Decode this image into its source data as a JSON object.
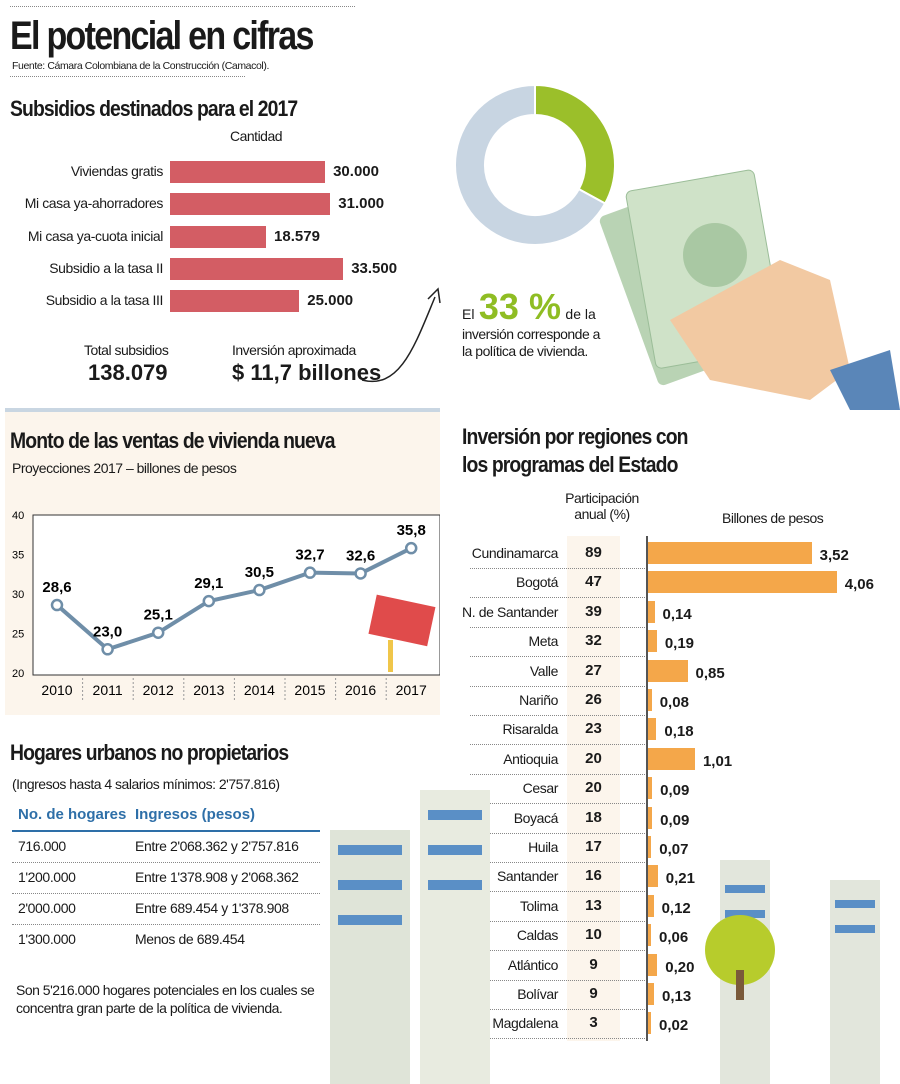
{
  "header": {
    "title": "El potencial  en cifras",
    "source": "Fuente: Cámara Colombiana de la Construcción (Camacol)."
  },
  "subsidios": {
    "title": "Subsidios destinados para el 2017",
    "column_label": "Cantidad",
    "total_label": "Total subsidios",
    "total_value": "138.079",
    "inversion_label": "Inversión aproximada",
    "inversion_value": "$ 11,7 billones"
  },
  "donut": {
    "prefix": "El",
    "percent_text": "33 %",
    "suffix": "de la",
    "line2": "inversión corresponde a",
    "line3": "la política de vivienda.",
    "colors": {
      "highlight": "#9bbf2a",
      "rest": "#c8d5e2"
    }
  },
  "ventas": {
    "title": "Monto de las ventas de vivienda nueva",
    "subtitle": "Proyecciones 2017 – billones de pesos"
  },
  "regiones": {
    "title_line1": "Inversión por regiones con",
    "title_line2": "los programas del Estado",
    "col1_line1": "Participación",
    "col1_line2": "anual (%)",
    "col2": "Billones de pesos"
  },
  "hogares": {
    "title": "Hogares urbanos no propietarios",
    "subtitle": "(Ingresos hasta 4 salarios mínimos: 2'757.816)",
    "headers": [
      "No. de hogares",
      "Ingresos (pesos)"
    ],
    "rows": [
      [
        "716.000",
        "Entre 2'068.362 y 2'757.816"
      ],
      [
        "1'200.000",
        "Entre 1'378.908 y 2'068.362"
      ],
      [
        "2'000.000",
        "Entre 689.454 y 1'378.908"
      ],
      [
        "1'300.000",
        "Menos de 689.454"
      ]
    ],
    "note_line1": "Son 5'216.000 hogares potenciales en los cuales se",
    "note_line2": "concentra gran parte de la política de vivienda."
  },
  "chart_data": [
    {
      "type": "bar",
      "orientation": "horizontal",
      "title": "Subsidios destinados para el 2017",
      "categories": [
        "Viviendas gratis",
        "Mi casa ya-ahorradores",
        "Mi casa ya-cuota inicial",
        "Subsidio a la tasa II",
        "Subsidio a la tasa III"
      ],
      "values": [
        30000,
        31000,
        18579,
        33500,
        25000
      ],
      "labels": [
        "30.000",
        "31.000",
        "18.579",
        "33.500",
        "25.000"
      ],
      "color": "#d35d64"
    },
    {
      "type": "pie",
      "donut": true,
      "values": [
        33,
        67
      ]
    },
    {
      "type": "line",
      "title": "Monto de las ventas de vivienda nueva",
      "x": [
        "2010",
        "2011",
        "2012",
        "2013",
        "2014",
        "2015",
        "2016",
        "2017"
      ],
      "values": [
        28.6,
        23.0,
        25.1,
        29.1,
        30.5,
        32.7,
        32.6,
        35.8
      ],
      "labels": [
        "28,6",
        "23,0",
        "25,1",
        "29,1",
        "30,5",
        "32,7",
        "32,6",
        "35,8"
      ],
      "ylim": [
        20,
        40
      ],
      "yticks": [
        "20",
        "25",
        "30",
        "35",
        "40"
      ],
      "grid": false,
      "color": "#6f8ea8"
    },
    {
      "type": "bar",
      "orientation": "horizontal",
      "title": "Inversión por regiones con los programas del Estado",
      "categories": [
        "Cundinamarca",
        "Bogotá",
        "N. de Santander",
        "Meta",
        "Valle",
        "Nariño",
        "Risaralda",
        "Antioquia",
        "Cesar",
        "Boyacá",
        "Huila",
        "Santander",
        "Tolima",
        "Caldas",
        "Atlántico",
        "Bolívar",
        "Magdalena"
      ],
      "participacion": [
        "89",
        "47",
        "39",
        "32",
        "27",
        "26",
        "23",
        "20",
        "20",
        "18",
        "17",
        "16",
        "13",
        "10",
        "9",
        "9",
        "3"
      ],
      "values": [
        3.52,
        4.06,
        0.14,
        0.19,
        0.85,
        0.08,
        0.18,
        1.01,
        0.09,
        0.09,
        0.07,
        0.21,
        0.12,
        0.06,
        0.2,
        0.13,
        0.02
      ],
      "labels": [
        "3,52",
        "4,06",
        "0,14",
        "0,19",
        "0,85",
        "0,08",
        "0,18",
        "1,01",
        "0,09",
        "0,09",
        "0,07",
        "0,21",
        "0,12",
        "0,06",
        "0,20",
        "0,13",
        "0,02"
      ],
      "color": "#f4a74a"
    }
  ]
}
